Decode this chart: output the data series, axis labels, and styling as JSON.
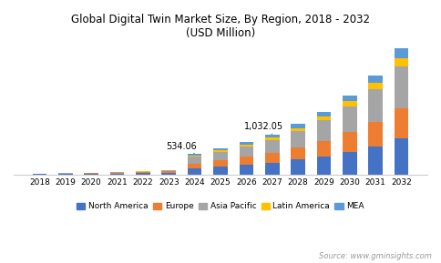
{
  "title": "Global Digital Twin Market Size, By Region, 2018 - 2032",
  "subtitle": "(USD Million)",
  "source": "Source: www.gminsights.com",
  "years": [
    2018,
    2019,
    2020,
    2021,
    2022,
    2023,
    2024,
    2025,
    2026,
    2027,
    2028,
    2029,
    2030,
    2031,
    2032
  ],
  "regions": [
    "North America",
    "Europe",
    "Asia Pacific",
    "Latin America",
    "MEA"
  ],
  "colors": [
    "#4472c4",
    "#ed7d31",
    "#a5a5a5",
    "#ffc000",
    "#5b9bd5"
  ],
  "data": {
    "North America": [
      8,
      11,
      16,
      22,
      30,
      42,
      155,
      195,
      245,
      300,
      380,
      470,
      590,
      730,
      920
    ],
    "Europe": [
      6,
      9,
      13,
      18,
      24,
      34,
      130,
      165,
      205,
      255,
      320,
      400,
      500,
      620,
      780
    ],
    "Asia Pacific": [
      4,
      7,
      10,
      14,
      19,
      27,
      175,
      215,
      270,
      330,
      415,
      520,
      660,
      840,
      1080
    ],
    "Latin America": [
      2,
      3,
      4,
      5,
      7,
      9,
      35,
      44,
      54,
      67,
      85,
      105,
      135,
      170,
      215
    ],
    "MEA": [
      1,
      2,
      3,
      4,
      5,
      7,
      39,
      49,
      61,
      80,
      101,
      126,
      160,
      200,
      255
    ]
  },
  "annotations": [
    {
      "year_idx": 6,
      "label": "534.06"
    },
    {
      "year_idx": 9,
      "label": "1,032.05"
    }
  ],
  "ylim": [
    0,
    3300
  ],
  "bar_width": 0.55
}
